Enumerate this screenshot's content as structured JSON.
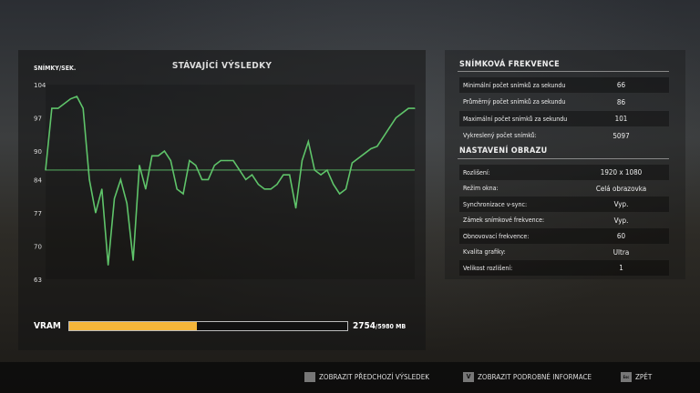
{
  "chart_panel": {
    "title": "STÁVAJÍCÍ VÝSLEDKY",
    "y_axis_label": "SNÍMKY/SEK.",
    "vram": {
      "label": "VRAM",
      "used": "2754",
      "total": "/5980 MB",
      "fraction": 0.4605,
      "color": "#f4b53a"
    }
  },
  "chart_data": {
    "type": "line",
    "ylabel": "SNÍMKY/SEK.",
    "ylim": [
      63,
      104
    ],
    "yticks": [
      "104",
      "97",
      "90",
      "84",
      "77",
      "70",
      "63"
    ],
    "ytick_values": [
      104,
      97,
      90,
      84,
      77,
      70,
      63
    ],
    "grid": false,
    "line_color": "#5fc46a",
    "average": 86,
    "values": [
      86,
      99,
      99,
      100,
      101,
      101.5,
      99,
      84,
      77,
      82,
      66,
      80,
      84,
      79,
      67,
      87,
      82,
      89,
      89,
      90,
      88,
      82,
      81,
      88,
      87,
      84,
      84,
      87,
      88,
      88,
      88,
      86,
      84,
      85,
      83,
      82,
      82,
      83,
      85,
      85,
      78,
      88,
      92,
      86,
      85,
      86,
      83,
      81,
      82,
      87.5,
      88.5,
      89.5,
      90.5,
      91,
      93,
      95,
      97,
      98,
      99,
      99
    ]
  },
  "frame_rate": {
    "heading": "SNÍMKOVÁ FREKVENCE",
    "rows": [
      {
        "label": "Minimální počet snímků za sekundu",
        "value": "66"
      },
      {
        "label": "Průměrný počet snímků za sekundu",
        "value": "86"
      },
      {
        "label": "Maximální počet snímků za sekundu",
        "value": "101"
      },
      {
        "label": "Vykreslený počet snímků:",
        "value": "5097"
      }
    ]
  },
  "display_settings": {
    "heading": "NASTAVENÍ OBRAZU",
    "rows": [
      {
        "label": "Rozlišení:",
        "value": "1920 x 1080"
      },
      {
        "label": "Režim okna:",
        "value": "Celá obrazovka"
      },
      {
        "label": "Synchronizace v-sync:",
        "value": "Vyp."
      },
      {
        "label": "Zámek snímkové frekvence:",
        "value": "Vyp."
      },
      {
        "label": "Obnovovací frekvence:",
        "value": "60"
      },
      {
        "label": "Kvalita grafiky:",
        "value": "Ultra"
      },
      {
        "label": "Velikost rozlišení:",
        "value": "1"
      }
    ]
  },
  "footer": {
    "prev": {
      "key": "",
      "label": "ZOBRAZIT PŘEDCHOZÍ VÝSLEDEK"
    },
    "details": {
      "key": "V",
      "label": "ZOBRAZIT PODROBNÉ INFORMACE"
    },
    "back": {
      "key": "Esc",
      "label": "ZPĚT"
    }
  }
}
